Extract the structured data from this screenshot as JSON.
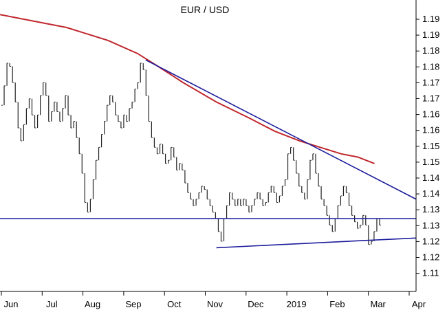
{
  "chart_data": {
    "type": "line",
    "title": "EUR / USD",
    "xlabel": "",
    "ylabel": "",
    "grid": false,
    "x_ticks": [
      "Jun",
      "Jul",
      "Aug",
      "Sep",
      "Oct",
      "Nov",
      "Dec",
      "2019",
      "Feb",
      "Mar",
      "Apr"
    ],
    "y_ticks": [
      "1.11",
      "1.12",
      "1.12",
      "1.13",
      "1.13",
      "1.14",
      "1.14",
      "1.15",
      "1.15",
      "1.16",
      "1.16",
      "1.17",
      "1.17",
      "1.18",
      "1.18",
      "1.19",
      "1.19"
    ],
    "ylim": [
      1.1075,
      1.1975
    ],
    "price_closes": [
      1.165,
      1.171,
      1.178,
      1.177,
      1.172,
      1.166,
      1.158,
      1.154,
      1.159,
      1.164,
      1.167,
      1.162,
      1.158,
      1.162,
      1.168,
      1.172,
      1.168,
      1.16,
      1.163,
      1.166,
      1.163,
      1.16,
      1.164,
      1.168,
      1.162,
      1.158,
      1.16,
      1.155,
      1.15,
      1.144,
      1.135,
      1.132,
      1.136,
      1.142,
      1.148,
      1.152,
      1.156,
      1.16,
      1.165,
      1.168,
      1.166,
      1.162,
      1.16,
      1.158,
      1.162,
      1.16,
      1.164,
      1.166,
      1.17,
      1.172,
      1.178,
      1.176,
      1.168,
      1.16,
      1.155,
      1.152,
      1.15,
      1.153,
      1.15,
      1.147,
      1.148,
      1.152,
      1.149,
      1.145,
      1.147,
      1.145,
      1.141,
      1.138,
      1.136,
      1.134,
      1.136,
      1.138,
      1.14,
      1.139,
      1.136,
      1.134,
      1.132,
      1.13,
      1.126,
      1.123,
      1.13,
      1.134,
      1.138,
      1.136,
      1.134,
      1.136,
      1.134,
      1.136,
      1.134,
      1.132,
      1.134,
      1.136,
      1.138,
      1.136,
      1.134,
      1.135,
      1.138,
      1.14,
      1.138,
      1.135,
      1.137,
      1.14,
      1.142,
      1.15,
      1.152,
      1.148,
      1.144,
      1.14,
      1.138,
      1.136,
      1.142,
      1.148,
      1.15,
      1.144,
      1.14,
      1.136,
      1.134,
      1.131,
      1.128,
      1.126,
      1.13,
      1.134,
      1.137,
      1.14,
      1.138,
      1.134,
      1.131,
      1.129,
      1.127,
      1.128,
      1.131,
      1.128,
      1.122,
      1.123,
      1.126,
      1.13,
      1.128
    ],
    "series": [
      {
        "values": [
          [
            0,
            1.193
          ],
          [
            0.08,
            1.191
          ],
          [
            0.16,
            1.189
          ],
          [
            0.26,
            1.185
          ],
          [
            0.33,
            1.181
          ],
          [
            0.38,
            1.177
          ],
          [
            0.44,
            1.172
          ],
          [
            0.52,
            1.166
          ],
          [
            0.6,
            1.161
          ],
          [
            0.66,
            1.157
          ],
          [
            0.72,
            1.154
          ],
          [
            0.77,
            1.152
          ],
          [
            0.82,
            1.15
          ],
          [
            0.86,
            1.149
          ],
          [
            0.9,
            1.147
          ]
        ]
      },
      {
        "values": [
          [
            0.35,
            1.179
          ],
          [
            1.0,
            1.136
          ]
        ]
      },
      {
        "values": [
          [
            0.0,
            1.13
          ],
          [
            1.0,
            1.13
          ]
        ]
      },
      {
        "values": [
          [
            0.52,
            1.121
          ],
          [
            1.0,
            1.124
          ]
        ]
      }
    ],
    "colors": {
      "price": "#222222",
      "ma": "#c0272d",
      "trendline": "#1c1c9c",
      "axis": "#000000"
    }
  }
}
